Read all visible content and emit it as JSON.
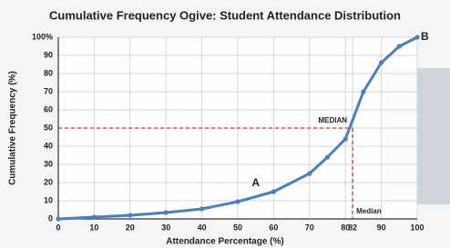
{
  "chart_data": {
    "type": "line",
    "title": "Cumulative Frequency Ogive: Student Attendance Distribution",
    "x_label": "Attendance Percentage (%)",
    "y_label": "Cumulative Frequency (%)",
    "x": [
      0,
      10,
      20,
      30,
      40,
      50,
      60,
      70,
      75,
      80,
      85,
      90,
      95,
      100
    ],
    "values": [
      0,
      1,
      2,
      3.5,
      5.5,
      9.5,
      15,
      25,
      34,
      44,
      70,
      86,
      95,
      100
    ],
    "color": "#4a7fc1",
    "xlim": [
      0,
      100
    ],
    "xticks": [
      0,
      10,
      20,
      30,
      40,
      50,
      60,
      70,
      80,
      82,
      90,
      100
    ],
    "ylim": [
      0,
      100
    ],
    "yticks": [
      0,
      10,
      20,
      30,
      40,
      50,
      60,
      70,
      80,
      90,
      {
        "value": 100,
        "label": "100%"
      }
    ],
    "grid": true,
    "median_x": 82,
    "median_y": 50,
    "median_color": "#d9342b",
    "annotations": {
      "point_a": "A",
      "point_b": "B",
      "median_line_label": "MEDIAN",
      "median_axis_label": "Median"
    }
  }
}
